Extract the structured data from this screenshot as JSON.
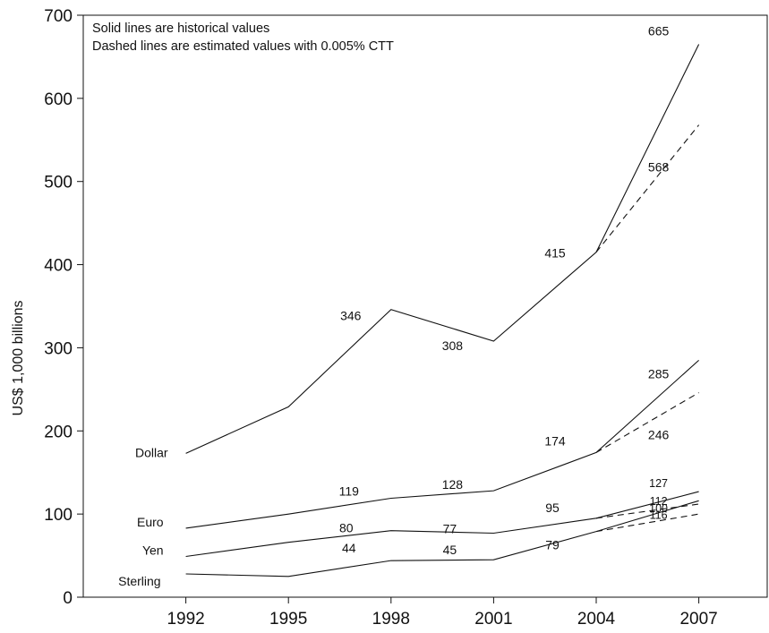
{
  "chart_data": {
    "type": "line",
    "ylabel": "US$ 1,000 billions",
    "xlabel": "",
    "notes": [
      "Solid lines are historical values",
      "Dashed lines are estimated values with 0.005% CTT"
    ],
    "x": [
      1992,
      1995,
      1998,
      2001,
      2004,
      2007
    ],
    "xlim": [
      1989,
      2009
    ],
    "ylim": [
      0,
      700
    ],
    "yticks": [
      0,
      100,
      200,
      300,
      400,
      500,
      600,
      700
    ],
    "xticks": [
      1992,
      1995,
      1998,
      2001,
      2004,
      2007
    ],
    "grid": false,
    "series": [
      {
        "name": "Dollar",
        "style": "solid",
        "values": [
          173,
          229,
          346,
          308,
          415,
          665
        ],
        "labels": [
          "",
          "",
          "346",
          "308",
          "415",
          "665"
        ]
      },
      {
        "name": "Euro",
        "style": "solid",
        "values": [
          83,
          100,
          119,
          128,
          174,
          285
        ],
        "labels": [
          "",
          "",
          "119",
          "128",
          "174",
          "285"
        ]
      },
      {
        "name": "Yen",
        "style": "solid",
        "values": [
          49,
          66,
          80,
          77,
          95,
          127
        ],
        "labels": [
          "",
          "",
          "80",
          "77",
          "95",
          "127"
        ]
      },
      {
        "name": "Sterling",
        "style": "solid",
        "values": [
          28,
          25,
          44,
          45,
          79,
          116
        ],
        "labels": [
          "",
          "",
          "44",
          "45",
          "79",
          "116"
        ]
      }
    ],
    "estimates": [
      {
        "of": "Dollar",
        "style": "dashed",
        "x": [
          2004,
          2007
        ],
        "values": [
          415,
          568
        ],
        "label": "568"
      },
      {
        "of": "Euro",
        "style": "dashed",
        "x": [
          2004,
          2007
        ],
        "values": [
          174,
          246
        ],
        "label": "246"
      },
      {
        "of": "Yen",
        "style": "dashed",
        "x": [
          2004,
          2007
        ],
        "values": [
          95,
          112
        ],
        "label": "112"
      },
      {
        "of": "Sterling",
        "style": "dashed",
        "x": [
          2004,
          2007
        ],
        "values": [
          79,
          100
        ],
        "label": "100"
      }
    ]
  }
}
